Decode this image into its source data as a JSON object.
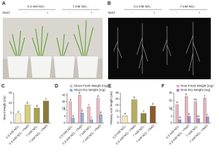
{
  "photo_panels": [
    {
      "label": "A",
      "groups": [
        "0.3 mM NO₃⁻",
        "7 mM NO₃⁻"
      ],
      "treatment": "NaCl",
      "signs": [
        "-",
        "+",
        "-",
        "+"
      ]
    },
    {
      "label": "B",
      "groups": [
        "0.3 mM NO₃⁻",
        "7 mM NO₃⁻"
      ],
      "treatment": "NaCl",
      "signs": [
        "-",
        "+",
        "-",
        "+"
      ]
    }
  ],
  "chart_data": [
    {
      "type": "bar",
      "panel": "C",
      "ylabel": "Shoot length (cm)",
      "categories": [
        "0.3 mM NO₃⁻",
        "0.3 mM NO₃⁻+NaCl",
        "7 mM NO₃⁻",
        "7 mM NO₃⁻+NaCl"
      ],
      "series": [
        {
          "colors": [
            "#f3ecc4",
            "#d8cc7a",
            "#a8a24e",
            "#8a7a3c"
          ],
          "values": [
            4.5,
            9,
            7.5,
            11
          ],
          "annotations": [
            "a",
            "b",
            "a",
            "c"
          ]
        }
      ],
      "ylim": [
        0,
        15
      ],
      "yticks": [
        0,
        5,
        10,
        15
      ]
    },
    {
      "type": "bar",
      "panel": "D",
      "ylabel": "",
      "categories": [
        "0.3 mM NO₃⁻",
        "0.3 mM NO₃⁻+NaCl",
        "7 mM NO₃⁻",
        "7 mM NO₃⁻+NaCl"
      ],
      "series": [
        {
          "name": "Shoot Fresh Weight (mg)",
          "color": "#f0b8bf",
          "values": [
            30,
            45,
            18,
            38
          ],
          "annotations": [
            "a",
            "b",
            "c",
            "d"
          ]
        },
        {
          "name": "Shoot Dry Weight (mg)",
          "color": "#8fb4dc",
          "values": [
            3,
            6,
            2,
            5
          ],
          "annotations": [
            "a",
            "b",
            "c",
            "d"
          ]
        }
      ],
      "ylim": [
        0,
        50
      ],
      "ybreak": [
        8,
        15
      ],
      "yticks": [
        0,
        4,
        8,
        15,
        30,
        45
      ]
    },
    {
      "type": "bar",
      "panel": "E",
      "ylabel": "Primary root length (cm)",
      "categories": [
        "0.3 mM NO₃⁻",
        "0.3 mM NO₃⁻+NaCl",
        "7 mM NO₃⁻",
        "7 mM NO₃⁻+NaCl"
      ],
      "series": [
        {
          "colors": [
            "#efe6bf",
            "#b7ad62",
            "#8d8540",
            "#8c5a2a"
          ],
          "values": [
            6,
            19.5,
            8,
            14
          ],
          "annotations": [
            "a",
            "b",
            "c",
            "d"
          ]
        }
      ],
      "ylim": [
        0,
        25
      ],
      "yticks": [
        0,
        5,
        10,
        15,
        20,
        25
      ]
    },
    {
      "type": "bar",
      "panel": "F",
      "ylabel": "",
      "categories": [
        "0.3 mM NO₃⁻",
        "0.3 mM NO₃⁻+NaCl",
        "7 mM NO₃⁻",
        "7 mM NO₃⁻+NaCl"
      ],
      "series": [
        {
          "name": "Root Fresh Weight (mg)",
          "color": "#e6b3bd",
          "values": [
            22,
            38,
            28,
            35
          ],
          "annotations": [
            "a",
            "b",
            "bc",
            "c"
          ]
        },
        {
          "name": "Root Dry Weight (mg)",
          "color": "#a98ac9",
          "values": [
            1.5,
            3,
            2,
            2.8
          ],
          "annotations": [
            "a",
            "b",
            "bc",
            "c"
          ]
        }
      ],
      "ylim": [
        0,
        45
      ],
      "ybreak": [
        6,
        15
      ],
      "yticks": [
        0,
        3,
        6,
        15,
        30,
        45
      ]
    }
  ]
}
